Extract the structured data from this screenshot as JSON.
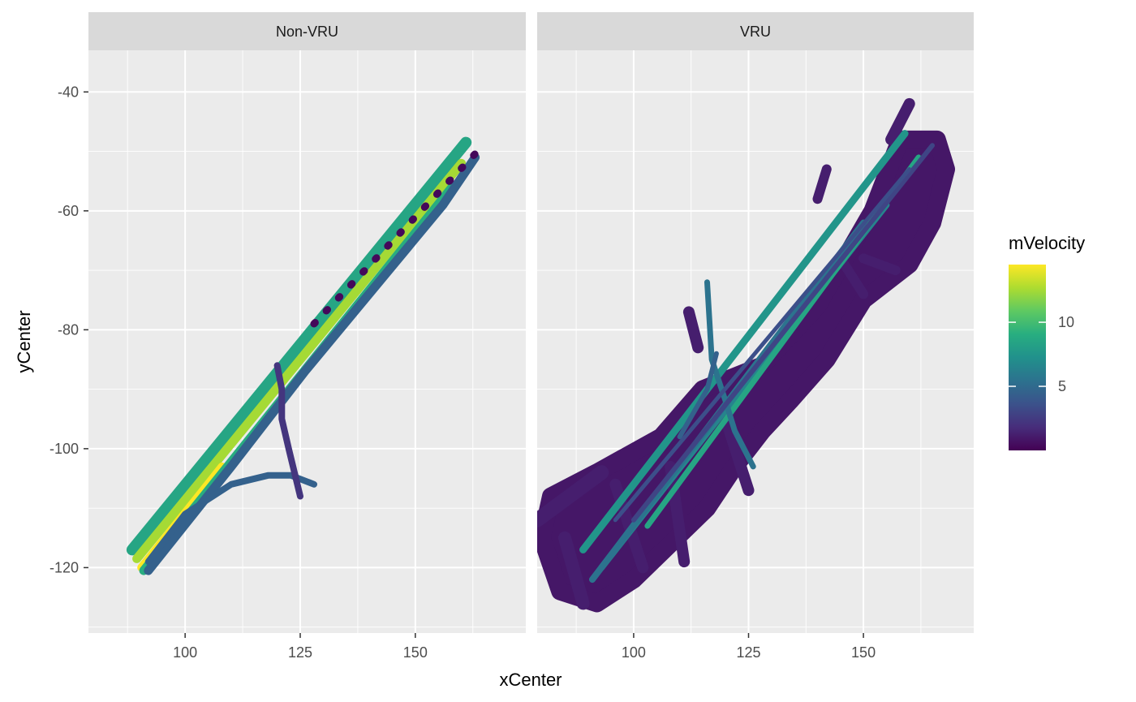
{
  "chart_data": {
    "type": "line",
    "xlabel": "xCenter",
    "ylabel": "yCenter",
    "x_ticks": [
      100,
      125,
      150
    ],
    "y_ticks": [
      -40,
      -60,
      -80,
      -100,
      -120
    ],
    "xlim": [
      79,
      174
    ],
    "ylim": [
      -131,
      -33
    ],
    "grid": true,
    "legend": {
      "title": "mVelocity",
      "ticks": [
        5,
        10
      ],
      "range": [
        0,
        14.5
      ],
      "placement": "right",
      "colormap": "viridis",
      "colors": [
        "#440154",
        "#472d7b",
        "#3b528b",
        "#2c728e",
        "#21918c",
        "#28ae80",
        "#5ec962",
        "#addc30",
        "#fde725"
      ]
    },
    "panels": [
      {
        "label": "Non-VRU",
        "series": [
          {
            "v": 8.5,
            "x": [
              88.5,
              161
            ],
            "y": [
              -117,
              -48.5
            ],
            "w": 14
          },
          {
            "v": 12.5,
            "x": [
              89.5,
              160
            ],
            "y": [
              -118.5,
              -52
            ],
            "w": 11
          },
          {
            "v": 14.5,
            "x": [
              90.5,
              108
            ],
            "y": [
              -120,
              -103
            ],
            "w": 10
          },
          {
            "v": 9,
            "x": [
              91,
              158
            ],
            "y": [
              -120.5,
              -56
            ],
            "w": 11
          },
          {
            "v": 4.5,
            "x": [
              92,
              110,
              126,
              156,
              163
            ],
            "y": [
              -120.5,
              -103,
              -87,
              -59,
              -51
            ],
            "w": 11
          },
          {
            "v": 0.3,
            "x": [
              128,
              163.5
            ],
            "y": [
              -79,
              -50
            ],
            "w": 9,
            "dash": [
              2,
              20
            ]
          },
          {
            "v": 4.5,
            "x": [
              92,
              100,
              110,
              118,
              123,
              128
            ],
            "y": [
              -119,
              -111,
              -106,
              -104.5,
              -104.5,
              -106
            ],
            "w": 8
          },
          {
            "v": 2.2,
            "x": [
              120,
              121,
              121,
              122.5,
              125
            ],
            "y": [
              -86,
              -90,
              -95,
              -100,
              -108
            ],
            "w": 8
          }
        ]
      },
      {
        "label": "VRU",
        "blob": {
          "v": 0.9,
          "x": [
            82,
            92,
            106,
            115,
            128,
            140,
            152,
            158,
            166,
            168,
            165,
            160,
            150,
            142,
            134,
            128,
            122,
            116,
            108,
            100,
            92,
            84,
            80
          ],
          "y": [
            -108,
            -104,
            -98,
            -90,
            -86,
            -76,
            -60,
            -48,
            -48,
            -53,
            -62,
            -69,
            -75,
            -85,
            -92,
            -97,
            -103,
            -110,
            -116,
            -122,
            -126,
            -124,
            -115
          ]
        },
        "series": [
          {
            "v": 1.2,
            "x": [
              79,
              93
            ],
            "y": [
              -112,
              -104
            ],
            "w": 18
          },
          {
            "v": 1.2,
            "x": [
              85,
              89
            ],
            "y": [
              -115,
              -126
            ],
            "w": 16
          },
          {
            "v": 1.2,
            "x": [
              108,
              111
            ],
            "y": [
              -103,
              -119
            ],
            "w": 14
          },
          {
            "v": 1.2,
            "x": [
              96,
              102
            ],
            "y": [
              -106,
              -120
            ],
            "w": 14
          },
          {
            "v": 1.2,
            "x": [
              114,
              112
            ],
            "y": [
              -83,
              -77
            ],
            "w": 14
          },
          {
            "v": 1.2,
            "x": [
              120,
              125
            ],
            "y": [
              -95,
              -107
            ],
            "w": 14
          },
          {
            "v": 1.2,
            "x": [
              140,
              142
            ],
            "y": [
              -58,
              -53
            ],
            "w": 12
          },
          {
            "v": 1.2,
            "x": [
              145,
              150
            ],
            "y": [
              -68,
              -74
            ],
            "w": 12
          },
          {
            "v": 1.2,
            "x": [
              150,
              157
            ],
            "y": [
              -68,
              -70
            ],
            "w": 12
          },
          {
            "v": 1.2,
            "x": [
              156,
              160
            ],
            "y": [
              -48,
              -42
            ],
            "w": 14
          },
          {
            "v": 7.5,
            "x": [
              89,
              159
            ],
            "y": [
              -117,
              -47
            ],
            "w": 9
          },
          {
            "v": 6.5,
            "x": [
              93,
              155
            ],
            "y": [
              -120,
              -59
            ],
            "w": 8
          },
          {
            "v": 8.5,
            "x": [
              103,
              162
            ],
            "y": [
              -113,
              -51
            ],
            "w": 7
          },
          {
            "v": 5.5,
            "x": [
              91,
              150
            ],
            "y": [
              -122,
              -62
            ],
            "w": 8
          },
          {
            "v": 5.5,
            "x": [
              116,
              117,
              120,
              122,
              126
            ],
            "y": [
              -72,
              -85,
              -92,
              -97,
              -103
            ],
            "w": 7
          },
          {
            "v": 4.5,
            "x": [
              118,
              116,
              113,
              110
            ],
            "y": [
              -84,
              -90,
              -94,
              -98
            ],
            "w": 6
          },
          {
            "v": 3.0,
            "x": [
              100,
              165
            ],
            "y": [
              -112,
              -49
            ],
            "w": 6
          },
          {
            "v": 3.5,
            "x": [
              96,
              160
            ],
            "y": [
              -112,
              -53
            ],
            "w": 5
          }
        ]
      }
    ]
  }
}
